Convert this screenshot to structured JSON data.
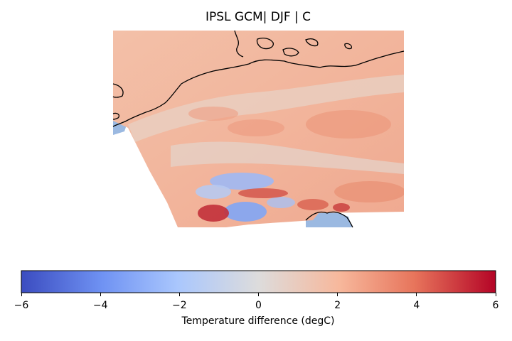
{
  "title": "IPSL GCM| DJF | C",
  "colorbar": {
    "label": "Temperature difference (degC)",
    "vmin": -6,
    "vmax": 6,
    "ticks": [
      "−6",
      "−4",
      "−2",
      "0",
      "2",
      "4",
      "6"
    ],
    "colormap": "coolwarm",
    "stops": [
      "#3b4cc0",
      "#6f92f3",
      "#aac7fd",
      "#dddcdc",
      "#f7b89c",
      "#e7745b",
      "#b40426"
    ]
  },
  "map": {
    "projection": "rotated-pole",
    "region": "Central Europe / Alps",
    "ocean_color": "#9bb9e1",
    "coastline_color": "#000000",
    "field": "temperature difference, mostly +1 to +3 degC, warm maxima near Alps, cold anomalies over Alpine ridge"
  }
}
